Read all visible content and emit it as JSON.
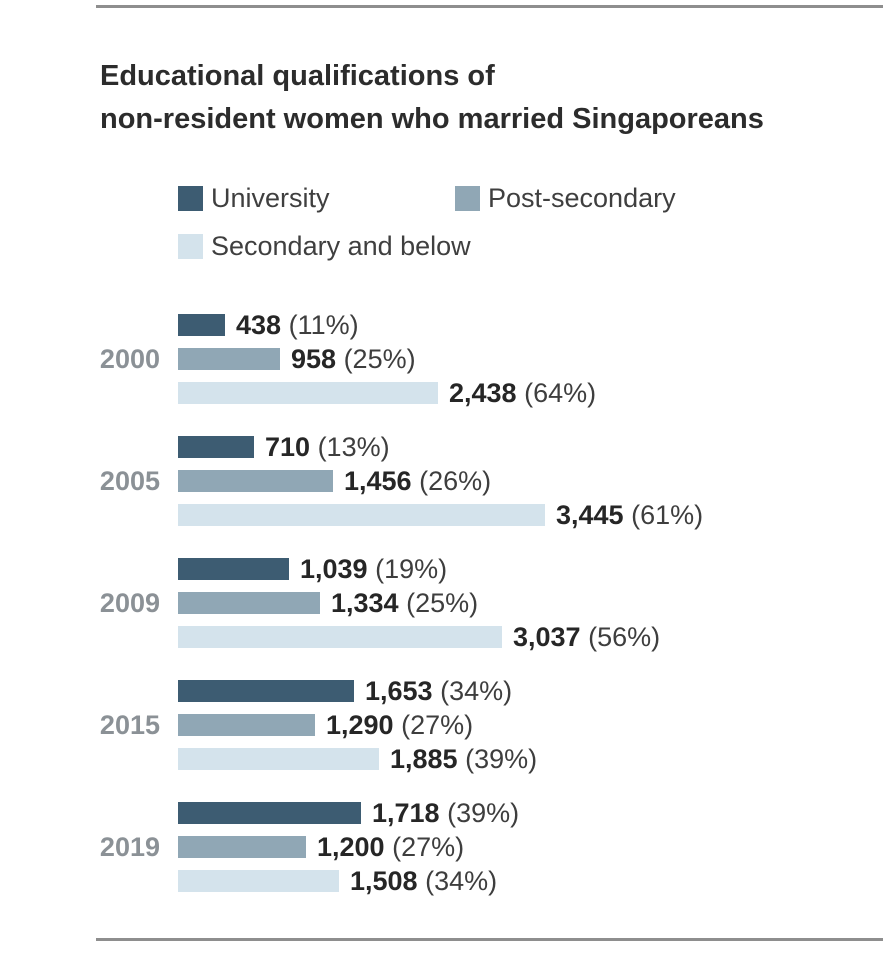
{
  "page": {
    "background": "#ffffff",
    "rule_color": "#8e8e8e"
  },
  "header": {
    "title_lines": [
      "Educational qualifications of",
      "non-resident women who married Singaporeans"
    ]
  },
  "chart_data": {
    "type": "bar",
    "orientation": "horizontal",
    "title": "Educational qualifications of non-resident women who married Singaporeans",
    "grid": false,
    "legend_position": "top",
    "xlim": [
      0,
      3445
    ],
    "value_label_format": "{value} ({percent}%)",
    "categories": [
      "2000",
      "2005",
      "2009",
      "2015",
      "2019"
    ],
    "series": [
      {
        "name": "University",
        "color": "#3d5c72",
        "values": [
          438,
          710,
          1039,
          1653,
          1718
        ],
        "percent": [
          11,
          13,
          19,
          34,
          39
        ]
      },
      {
        "name": "Post-secondary",
        "color": "#90a7b5",
        "values": [
          958,
          1456,
          1334,
          1290,
          1200
        ],
        "percent": [
          25,
          26,
          25,
          27,
          27
        ]
      },
      {
        "name": "Secondary and below",
        "color": "#d4e3ec",
        "values": [
          2438,
          3445,
          3037,
          1885,
          1508
        ],
        "percent": [
          64,
          61,
          56,
          39,
          34
        ]
      }
    ],
    "year_label_color": "#8b9196",
    "value_text_color": "#262626",
    "percent_text_color": "#3e3e3e"
  }
}
